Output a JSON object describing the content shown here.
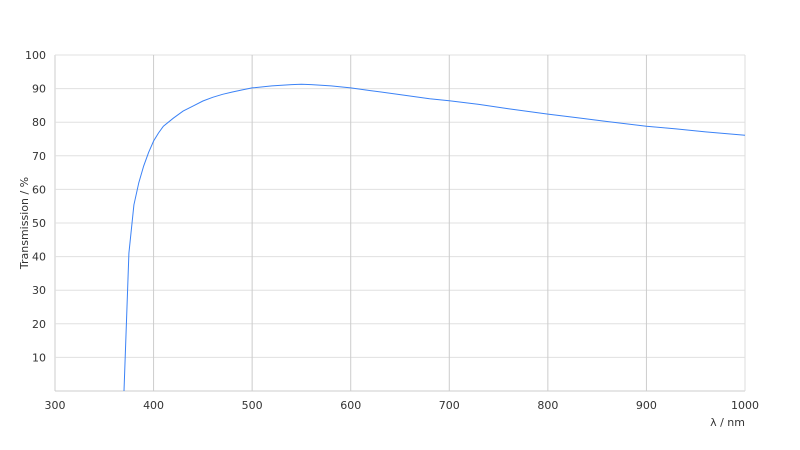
{
  "chart_data": {
    "type": "line",
    "title": "",
    "xlabel": "λ / nm",
    "ylabel": "Transmission / %",
    "xlim": [
      300,
      1000
    ],
    "ylim": [
      0,
      100
    ],
    "xticks": [
      300,
      400,
      500,
      600,
      700,
      800,
      900,
      1000
    ],
    "yticks": [
      10,
      20,
      30,
      40,
      50,
      60,
      70,
      80,
      90,
      100
    ],
    "grid": true,
    "line_color": "#3b82f6",
    "series": [
      {
        "x": [
          370,
          375,
          380,
          385,
          390,
          395,
          400,
          405,
          410,
          420,
          430,
          440,
          450,
          460,
          470,
          480,
          490,
          500,
          520,
          540,
          550,
          560,
          580,
          600,
          620,
          650,
          680,
          700,
          730,
          760,
          800,
          830,
          860,
          900,
          930,
          960,
          1000
        ],
        "y": [
          0,
          41,
          55.4,
          62,
          67,
          71,
          74.4,
          76.8,
          78.8,
          81.2,
          83.3,
          84.8,
          86.3,
          87.4,
          88.3,
          89,
          89.6,
          90.2,
          90.8,
          91.2,
          91.3,
          91.2,
          90.8,
          90.2,
          89.4,
          88.2,
          87,
          86.4,
          85.3,
          84,
          82.4,
          81.3,
          80.2,
          78.8,
          78,
          77.1,
          76.1
        ]
      }
    ]
  }
}
